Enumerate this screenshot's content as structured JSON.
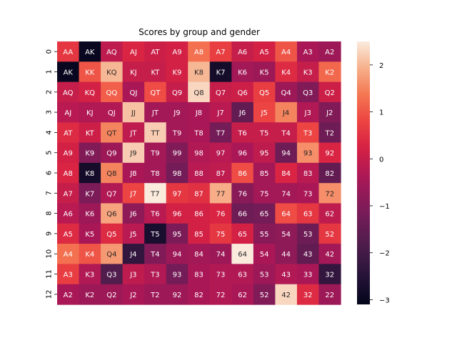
{
  "chart_data": {
    "type": "heatmap",
    "title": "Scores by group and gender",
    "xlabel": "",
    "ylabel": "",
    "row_labels": [
      "0",
      "1",
      "2",
      "3",
      "4",
      "5",
      "6",
      "7",
      "8",
      "9",
      "10",
      "11",
      "12"
    ],
    "colorbar": {
      "ticks": [
        2,
        1,
        0,
        -1,
        -2,
        -3
      ],
      "min": -3.1,
      "max": 2.5,
      "colormap": "rocket"
    },
    "labels": [
      [
        "AA",
        "AK",
        "AQ",
        "AJ",
        "AT",
        "A9",
        "A8",
        "A7",
        "A6",
        "A5",
        "A4",
        "A3",
        "A2"
      ],
      [
        "AK",
        "KK",
        "KQ",
        "KJ",
        "KT",
        "K9",
        "K8",
        "K7",
        "K6",
        "K5",
        "K4",
        "K3",
        "K2"
      ],
      [
        "AQ",
        "KQ",
        "QQ",
        "QJ",
        "QT",
        "Q9",
        "Q8",
        "Q7",
        "Q6",
        "Q5",
        "Q4",
        "Q3",
        "Q2"
      ],
      [
        "AJ",
        "KJ",
        "QJ",
        "JJ",
        "JT",
        "J9",
        "J8",
        "J7",
        "J6",
        "J5",
        "J4",
        "J3",
        "J2"
      ],
      [
        "AT",
        "KT",
        "QT",
        "JT",
        "TT",
        "T9",
        "T8",
        "T7",
        "T6",
        "T5",
        "T4",
        "T3",
        "T2"
      ],
      [
        "A9",
        "K9",
        "Q9",
        "J9",
        "T9",
        "99",
        "98",
        "97",
        "96",
        "95",
        "94",
        "93",
        "92"
      ],
      [
        "A8",
        "K8",
        "Q8",
        "J8",
        "T8",
        "98",
        "88",
        "87",
        "86",
        "85",
        "84",
        "83",
        "82"
      ],
      [
        "A7",
        "K7",
        "Q7",
        "J7",
        "T7",
        "97",
        "87",
        "77",
        "76",
        "75",
        "74",
        "73",
        "72"
      ],
      [
        "A6",
        "K6",
        "Q6",
        "J6",
        "T6",
        "96",
        "86",
        "76",
        "66",
        "65",
        "64",
        "63",
        "62"
      ],
      [
        "A5",
        "K5",
        "Q5",
        "J5",
        "T5",
        "95",
        "85",
        "75",
        "65",
        "55",
        "54",
        "53",
        "52"
      ],
      [
        "A4",
        "K4",
        "Q4",
        "J4",
        "T4",
        "94",
        "84",
        "74",
        "64",
        "54",
        "44",
        "43",
        "42"
      ],
      [
        "A3",
        "K3",
        "Q3",
        "J3",
        "T3",
        "93",
        "83",
        "73",
        "63",
        "53",
        "43",
        "33",
        "32"
      ],
      [
        "A2",
        "K2",
        "Q2",
        "J2",
        "T2",
        "92",
        "82",
        "72",
        "62",
        "52",
        "42",
        "32",
        "22"
      ]
    ],
    "values": [
      [
        0.6,
        -3.0,
        -0.1,
        0.3,
        0.1,
        0.2,
        1.3,
        0.7,
        0.0,
        0.2,
        1.0,
        -0.4,
        -0.6
      ],
      [
        -3.0,
        1.0,
        2.0,
        0.0,
        0.0,
        0.2,
        2.0,
        -2.8,
        -0.5,
        -0.6,
        0.4,
        0.0,
        1.2
      ],
      [
        0.0,
        0.2,
        1.1,
        -0.4,
        0.9,
        0.0,
        2.3,
        0.0,
        0.1,
        0.7,
        -0.6,
        -1.0,
        0.1
      ],
      [
        -0.2,
        -0.3,
        -0.3,
        2.1,
        -0.5,
        -0.5,
        -0.4,
        -0.2,
        -1.5,
        0.8,
        1.5,
        -0.3,
        -1.0
      ],
      [
        0.4,
        0.1,
        1.5,
        -0.1,
        2.2,
        -0.5,
        -0.4,
        -1.2,
        0.0,
        0.0,
        0.0,
        0.8,
        -1.3
      ],
      [
        0.2,
        -1.0,
        -0.6,
        2.2,
        -0.5,
        -1.0,
        -0.3,
        -0.2,
        -0.4,
        -0.1,
        -1.3,
        1.6,
        0.3
      ],
      [
        0.3,
        -2.8,
        1.5,
        -0.4,
        -0.5,
        -1.2,
        -0.2,
        -0.1,
        0.9,
        -0.5,
        0.3,
        -0.2,
        -1.5
      ],
      [
        0.0,
        -1.1,
        -0.3,
        0.8,
        2.5,
        0.6,
        0.5,
        1.9,
        -0.9,
        -0.5,
        -0.5,
        -0.4,
        1.6
      ],
      [
        -0.2,
        -0.6,
        1.8,
        -0.8,
        -0.2,
        0.2,
        0.2,
        0.3,
        -1.3,
        -1.2,
        0.9,
        0.6,
        -0.1
      ],
      [
        0.4,
        -0.4,
        0.4,
        -0.2,
        -2.7,
        -1.1,
        0.2,
        0.6,
        0.2,
        -0.9,
        -0.8,
        -1.3,
        0.6
      ],
      [
        1.3,
        1.0,
        1.7,
        -2.3,
        -1.0,
        -0.6,
        -0.5,
        -0.6,
        2.5,
        -0.4,
        -0.8,
        -1.5,
        -0.5
      ],
      [
        0.7,
        -0.3,
        -1.8,
        -0.1,
        -0.3,
        -1.2,
        -0.4,
        -0.3,
        -0.3,
        -0.6,
        -0.3,
        -0.4,
        -2.3
      ],
      [
        -0.4,
        -0.6,
        -0.6,
        -0.4,
        -0.6,
        -0.6,
        -0.4,
        -0.3,
        -0.4,
        -1.0,
        2.3,
        0.4,
        -0.6
      ]
    ]
  }
}
